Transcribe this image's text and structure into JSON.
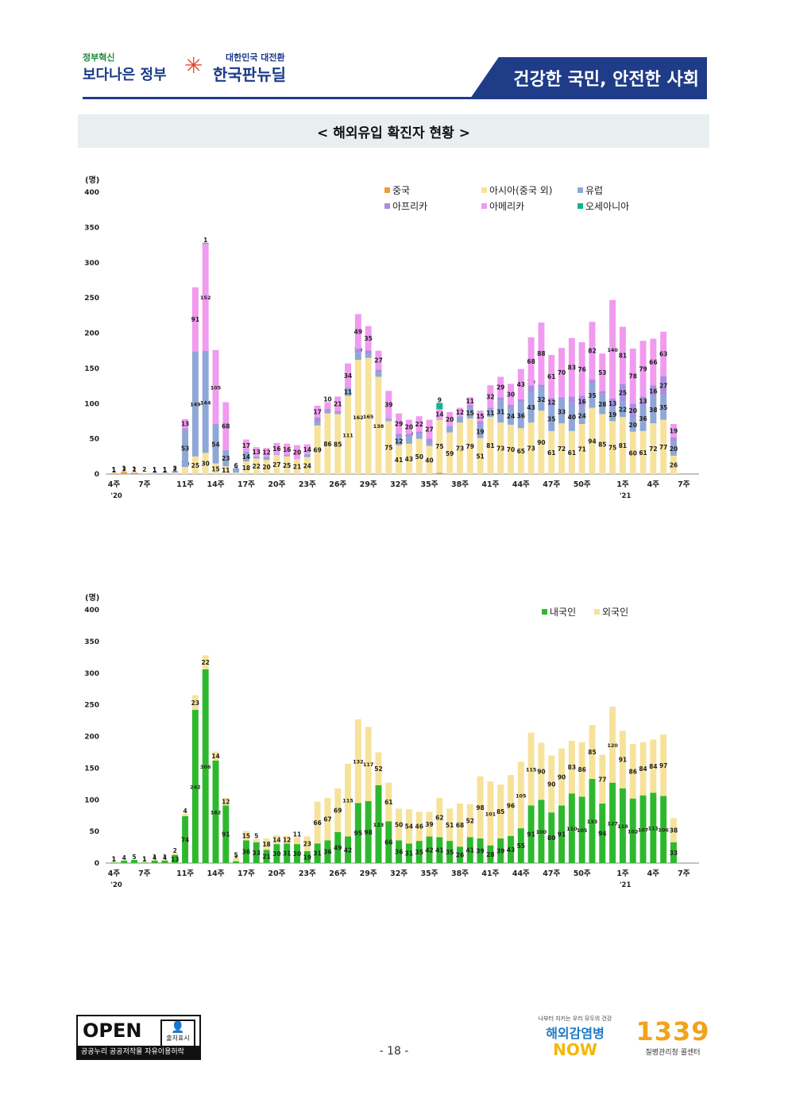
{
  "header": {
    "logo1_small": "정부혁신",
    "logo1_big": "보다나은 정부",
    "logo2_small": "대한민국 대전환",
    "logo2_big": "한국판뉴딜",
    "slogan": "건강한 국민, 안전한 사회"
  },
  "page_title": "< 해외유입 확진자 현황 >",
  "chart_data": [
    {
      "type": "bar",
      "stacked": true,
      "unit_label": "(명)",
      "ylim": [
        0,
        400
      ],
      "yticks": [
        0,
        50,
        100,
        150,
        200,
        250,
        300,
        350,
        400
      ],
      "x": [
        "4주",
        "5주",
        "6주",
        "7주",
        "8주",
        "9주",
        "10주",
        "11주",
        "12주",
        "13주",
        "14주",
        "15주",
        "16주",
        "17주",
        "18주",
        "19주",
        "20주",
        "21주",
        "22주",
        "23주",
        "24주",
        "25주",
        "26주",
        "27주",
        "28주",
        "29주",
        "30주",
        "31주",
        "32주",
        "33주",
        "34주",
        "35주",
        "36주",
        "37주",
        "38주",
        "39주",
        "40주",
        "41주",
        "42주",
        "43주",
        "44주",
        "45주",
        "46주",
        "47주",
        "48주",
        "49주",
        "50주",
        "51주",
        "52주",
        "53주",
        "1주",
        "2주",
        "3주",
        "4주",
        "5주",
        "6주",
        "7주",
        "8주"
      ],
      "x_tick_labels": [
        "4주",
        "7주",
        "11주",
        "14주",
        "17주",
        "20주",
        "23주",
        "26주",
        "29주",
        "32주",
        "35주",
        "38주",
        "41주",
        "44주",
        "47주",
        "50주",
        "1주",
        "4주",
        "7주"
      ],
      "x_tick_weeks": [
        0,
        3,
        7,
        10,
        13,
        16,
        19,
        22,
        25,
        28,
        31,
        34,
        37,
        40,
        43,
        46,
        50,
        53,
        56
      ],
      "year_labels": [
        {
          "text": "'20",
          "at": 0
        },
        {
          "text": "'21",
          "at": 50
        }
      ],
      "legend": [
        "중국",
        "아시아(중국 외)",
        "유럽",
        "아프리카",
        "아메리카",
        "오세아니아"
      ],
      "colors": {
        "china": "#f39c34",
        "asia": "#f7e29b",
        "europe": "#8ea7d6",
        "africa": "#a98ee0",
        "america": "#f09bef",
        "oceania": "#10b58c"
      },
      "series": [
        {
          "name": "중국",
          "key": "china",
          "values": [
            1,
            3,
            2,
            0,
            0,
            0,
            0,
            0,
            0,
            0,
            0,
            0,
            0,
            0,
            0,
            0,
            0,
            0,
            0,
            0,
            0,
            0,
            0,
            0,
            0,
            0,
            0,
            0,
            0,
            0,
            0,
            0,
            2,
            0,
            0,
            0,
            0,
            0,
            0,
            0,
            0,
            0,
            0,
            0,
            0,
            0,
            0,
            0,
            0,
            0,
            0,
            0,
            0,
            0,
            0,
            0,
            0,
            0
          ]
        },
        {
          "name": "아시아(중국 외)",
          "key": "asia",
          "values": [
            1,
            1,
            1,
            2,
            1,
            1,
            2,
            10,
            25,
            30,
            15,
            11,
            2,
            18,
            22,
            20,
            27,
            25,
            21,
            24,
            69,
            86,
            85,
            111,
            162,
            165,
            138,
            75,
            41,
            43,
            50,
            40,
            75,
            59,
            73,
            79,
            51,
            81,
            73,
            70,
            65,
            73,
            90,
            61,
            72,
            61,
            71,
            94,
            85,
            75,
            81,
            60,
            61,
            72,
            77,
            26,
            0,
            0
          ]
        },
        {
          "name": "유럽",
          "key": "europe",
          "values": [
            0,
            0,
            0,
            0,
            1,
            1,
            2,
            53,
            149,
            144,
            54,
            23,
            6,
            14,
            3,
            4,
            1,
            2,
            0,
            4,
            4,
            4,
            2,
            11,
            10,
            5,
            6,
            3,
            12,
            10,
            6,
            4,
            1,
            8,
            8,
            15,
            19,
            11,
            31,
            24,
            36,
            43,
            32,
            35,
            33,
            40,
            24,
            35,
            28,
            19,
            22,
            20,
            36,
            38,
            35,
            20,
            0,
            0
          ]
        },
        {
          "name": "아프리카",
          "key": "africa",
          "values": [
            0,
            0,
            0,
            0,
            0,
            0,
            0,
            2,
            0,
            1,
            2,
            0,
            0,
            0,
            0,
            1,
            0,
            0,
            0,
            0,
            7,
            2,
            2,
            1,
            6,
            5,
            4,
            1,
            4,
            4,
            4,
            6,
            0,
            1,
            1,
            4,
            5,
            2,
            5,
            4,
            5,
            10,
            5,
            12,
            4,
            9,
            16,
            5,
            5,
            13,
            25,
            20,
            13,
            16,
            27,
            6,
            0,
            0
          ]
        },
        {
          "name": "아메리카",
          "key": "america",
          "values": [
            0,
            0,
            0,
            0,
            0,
            0,
            0,
            13,
            91,
            152,
            105,
            68,
            0,
            17,
            13,
            12,
            16,
            16,
            20,
            14,
            17,
            10,
            21,
            34,
            49,
            35,
            27,
            39,
            29,
            20,
            22,
            27,
            14,
            20,
            12,
            11,
            15,
            32,
            29,
            30,
            43,
            68,
            88,
            61,
            70,
            83,
            76,
            82,
            53,
            140,
            81,
            78,
            79,
            66,
            63,
            19,
            0,
            0
          ]
        },
        {
          "name": "오세아니아",
          "key": "oceania",
          "values": [
            0,
            0,
            0,
            0,
            0,
            0,
            0,
            0,
            0,
            1,
            0,
            0,
            0,
            0,
            0,
            0,
            0,
            0,
            0,
            0,
            0,
            0,
            0,
            0,
            0,
            0,
            0,
            0,
            0,
            0,
            0,
            0,
            9,
            0,
            0,
            0,
            0,
            0,
            0,
            0,
            0,
            0,
            0,
            0,
            0,
            0,
            0,
            0,
            0,
            0,
            0,
            0,
            0,
            0,
            0,
            0,
            0,
            0
          ]
        }
      ],
      "totals": [
        2,
        4,
        3,
        2,
        2,
        2,
        4,
        78,
        265,
        328,
        176,
        102,
        8,
        49,
        38,
        37,
        44,
        43,
        41,
        42,
        97,
        102,
        110,
        157,
        227,
        210,
        175,
        118,
        86,
        77,
        82,
        77,
        101,
        88,
        94,
        109,
        90,
        126,
        138,
        128,
        149,
        194,
        215,
        169,
        179,
        193,
        187,
        216,
        171,
        247,
        209,
        178,
        189,
        192,
        202,
        71,
        0,
        0
      ]
    },
    {
      "type": "bar",
      "stacked": true,
      "unit_label": "(명)",
      "ylim": [
        0,
        400
      ],
      "yticks": [
        0,
        50,
        100,
        150,
        200,
        250,
        300,
        350,
        400
      ],
      "x_tick_labels": [
        "4주",
        "7주",
        "11주",
        "14주",
        "17주",
        "20주",
        "23주",
        "26주",
        "29주",
        "32주",
        "35주",
        "38주",
        "41주",
        "44주",
        "47주",
        "50주",
        "1주",
        "4주",
        "7주"
      ],
      "x_tick_weeks": [
        0,
        3,
        7,
        10,
        13,
        16,
        19,
        22,
        25,
        28,
        31,
        34,
        37,
        40,
        43,
        46,
        50,
        53,
        56
      ],
      "year_labels": [
        {
          "text": "'20",
          "at": 0
        },
        {
          "text": "'21",
          "at": 50
        }
      ],
      "legend": [
        "내국인",
        "외국인"
      ],
      "colors": {
        "domestic": "#2eb82e",
        "foreign": "#f7e29b"
      },
      "series": [
        {
          "name": "내국인",
          "key": "domestic",
          "values": [
            1,
            4,
            5,
            1,
            4,
            4,
            13,
            74,
            242,
            306,
            162,
            91,
            3,
            36,
            33,
            21,
            30,
            31,
            30,
            19,
            31,
            36,
            49,
            42,
            95,
            98,
            123,
            66,
            36,
            31,
            35,
            42,
            41,
            35,
            26,
            41,
            39,
            28,
            39,
            43,
            55,
            91,
            100,
            80,
            91,
            110,
            105,
            133,
            94,
            127,
            118,
            102,
            107,
            111,
            106,
            33,
            0,
            0
          ]
        },
        {
          "name": "외국인",
          "key": "foreign",
          "values": [
            1,
            0,
            0,
            1,
            1,
            1,
            2,
            4,
            23,
            22,
            14,
            12,
            5,
            15,
            5,
            18,
            14,
            12,
            11,
            23,
            66,
            67,
            69,
            115,
            132,
            117,
            52,
            61,
            50,
            54,
            46,
            39,
            62,
            51,
            68,
            52,
            98,
            101,
            85,
            96,
            105,
            115,
            90,
            90,
            90,
            83,
            86,
            85,
            77,
            120,
            91,
            86,
            84,
            84,
            97,
            38,
            0,
            0
          ]
        }
      ]
    }
  ],
  "footer": {
    "open_main": "OPEN",
    "open_badge": "출처표시",
    "open_bar": "공공누리  공공저작물 자유이용허락",
    "page_number": "- 18 -",
    "now_tag": "나부터 지키는 우리 모두의 건강",
    "now_line1": "해외감염병",
    "now_line2": "NOW",
    "call_num": "1339",
    "call_sub": "질병관리청 콜센터"
  }
}
